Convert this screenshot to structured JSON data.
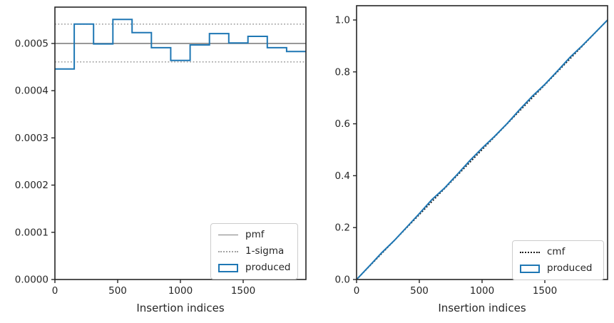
{
  "colors": {
    "accent_blue": "#1f77b4",
    "pmf_gray": "#808080",
    "sigma_gray": "#a3a3a3",
    "cmf_black": "#1a1a1a",
    "spine_color": "#262626",
    "text_color": "#262626",
    "background": "#ffffff"
  },
  "chart_data": [
    {
      "type": "bar",
      "subtype": "step-histogram",
      "title": "",
      "xlabel": "Insertion indices",
      "ylabel": "",
      "xlim": [
        0,
        2000
      ],
      "ylim": [
        0,
        0.000577
      ],
      "grid": false,
      "xticks": [
        0,
        500,
        1000,
        1500
      ],
      "xtick_labels": [
        "0",
        "500",
        "1000",
        "1500"
      ],
      "ytick_values": [
        0.0,
        0.0001,
        0.0002,
        0.0003,
        0.0004,
        0.0005
      ],
      "ytick_labels": [
        "0.0000",
        "0.0001",
        "0.0002",
        "0.0003",
        "0.0004",
        "0.0005"
      ],
      "pmf_value": 0.0005,
      "sigma_upper": 0.000541,
      "sigma_lower": 0.000461,
      "bin_edges": [
        0,
        154,
        308,
        462,
        615,
        769,
        923,
        1077,
        1231,
        1385,
        1538,
        1692,
        1846,
        2000
      ],
      "bin_values": [
        0.000446,
        0.000541,
        0.000499,
        0.000551,
        0.000523,
        0.000491,
        0.000464,
        0.000497,
        0.000521,
        0.000501,
        0.000515,
        0.000491,
        0.000483
      ],
      "legend": [
        {
          "label": "pmf",
          "style": "solid-gray"
        },
        {
          "label": "1-sigma",
          "style": "dotted-gray"
        },
        {
          "label": "produced",
          "style": "blue-rect"
        }
      ],
      "legend_position": "lower right"
    },
    {
      "type": "line",
      "subtype": "cdf",
      "title": "",
      "xlabel": "Insertion indices",
      "ylabel": "",
      "xlim": [
        0,
        2000
      ],
      "ylim": [
        0,
        1.055
      ],
      "grid": false,
      "xticks": [
        0,
        500,
        1000,
        1500
      ],
      "xtick_labels": [
        "0",
        "500",
        "1000",
        "1500"
      ],
      "ytick_values": [
        0.0,
        0.2,
        0.4,
        0.6,
        0.8,
        1.0
      ],
      "ytick_labels": [
        "0.0",
        "0.2",
        "0.4",
        "0.6",
        "0.8",
        "1.0"
      ],
      "series": [
        {
          "name": "cmf",
          "style": "dotted-black",
          "x": [
            0,
            2000
          ],
          "y": [
            0.0,
            1.0
          ]
        },
        {
          "name": "produced",
          "style": "solid-blue",
          "x": [
            0,
            100,
            200,
            300,
            400,
            500,
            600,
            700,
            800,
            900,
            1000,
            1100,
            1200,
            1300,
            1400,
            1500,
            1600,
            1700,
            1800,
            1900,
            2000
          ],
          "y": [
            0.0,
            0.051,
            0.103,
            0.15,
            0.202,
            0.254,
            0.308,
            0.352,
            0.404,
            0.457,
            0.506,
            0.552,
            0.601,
            0.655,
            0.706,
            0.752,
            0.803,
            0.856,
            0.902,
            0.951,
            1.0
          ]
        }
      ],
      "legend": [
        {
          "label": "cmf",
          "style": "dotted-black"
        },
        {
          "label": "produced",
          "style": "blue-rect"
        }
      ],
      "legend_position": "lower right"
    }
  ]
}
